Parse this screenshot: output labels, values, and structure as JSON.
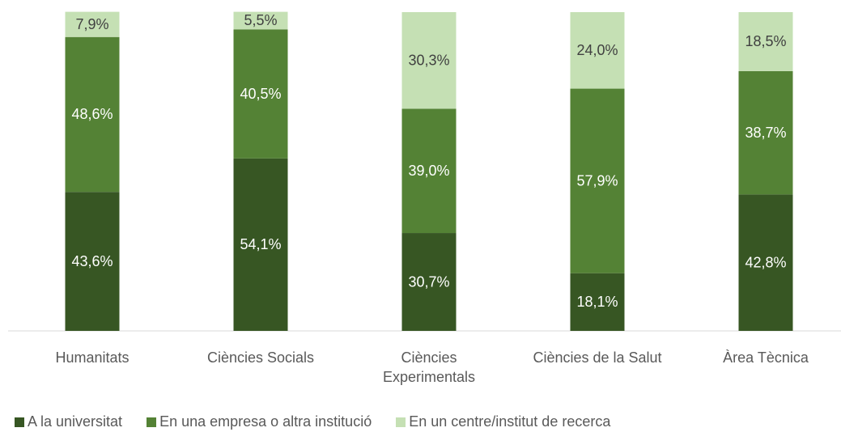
{
  "chart_data": {
    "type": "stacked_bar",
    "categories": [
      "Humanitats",
      "Ciències Socials",
      "Ciències Experimentals",
      "Ciències de la Salut",
      "Àrea Tècnica"
    ],
    "ylim": [
      0,
      100
    ],
    "legend": "bottom",
    "series": [
      {
        "name": "A la universitat",
        "color": "#375623",
        "values": [
          43.6,
          54.1,
          30.7,
          18.1,
          42.8
        ],
        "value_labels": [
          "43,6%",
          "54,1%",
          "30,7%",
          "18,1%",
          "42,8%"
        ]
      },
      {
        "name": "En una empresa o altra institució",
        "color": "#548235",
        "values": [
          48.6,
          40.5,
          39.0,
          57.9,
          38.7
        ],
        "value_labels": [
          "48,6%",
          "40,5%",
          "39,0%",
          "57,9%",
          "38,7%"
        ]
      },
      {
        "name": "En un centre/institut de recerca",
        "color": "#c5e0b4",
        "values": [
          7.9,
          5.5,
          30.3,
          24.0,
          18.5
        ],
        "value_labels": [
          "7,9%",
          "5,5%",
          "30,3%",
          "24,0%",
          "18,5%"
        ]
      }
    ]
  }
}
